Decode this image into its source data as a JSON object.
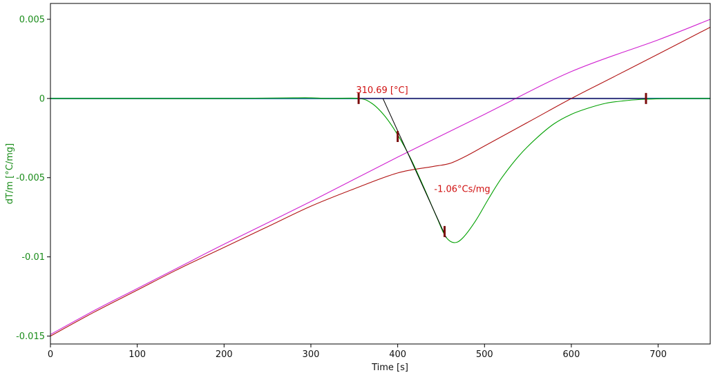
{
  "chart_data": {
    "type": "line",
    "title": "",
    "xlabel": "Time [s]",
    "ylabel": "dT/m  [°C/mg]",
    "xlim": [
      0,
      760
    ],
    "ylim": [
      -0.0155,
      0.006
    ],
    "x_ticks": [
      0,
      100,
      200,
      300,
      400,
      500,
      600,
      700
    ],
    "x_tick_labels": [
      "0",
      "100",
      "200",
      "300",
      "400",
      "500",
      "600",
      "700"
    ],
    "y_ticks": [
      0.005,
      0,
      -0.005,
      -0.01,
      -0.015
    ],
    "y_tick_labels": [
      "0.005",
      "0",
      "-0.005",
      "-0.01",
      "-0.015"
    ],
    "grid": false,
    "colors": {
      "dtm": "#00a000",
      "temperature": "#b01010",
      "program": "#d020d0",
      "baseline": "#1f6f9f",
      "horizontal_ref": "#400060",
      "tangent": "#000000",
      "marker": "#7a0a0a",
      "annotation": "#d01010",
      "y_axis_text": "#1a8c1a"
    },
    "series": [
      {
        "key": "dtm",
        "x": [
          0,
          100,
          200,
          280,
          300,
          320,
          355,
          370,
          385,
          400,
          415,
          430,
          445,
          455,
          465,
          475,
          490,
          505,
          520,
          540,
          560,
          580,
          600,
          620,
          640,
          660,
          680,
          700,
          720,
          760
        ],
        "y": [
          0,
          0,
          0,
          4e-05,
          4e-05,
          0,
          0,
          -0.0003,
          -0.0011,
          -0.0023,
          -0.0038,
          -0.0056,
          -0.0075,
          -0.0087,
          -0.0091,
          -0.0088,
          -0.0077,
          -0.0063,
          -0.005,
          -0.0036,
          -0.0025,
          -0.0016,
          -0.001,
          -0.0006,
          -0.0003,
          -0.00015,
          -6e-05,
          -2e-05,
          0,
          0
        ]
      },
      {
        "key": "temperature",
        "x": [
          0,
          50,
          100,
          150,
          200,
          250,
          300,
          350,
          400,
          440,
          460,
          480,
          500,
          530,
          560,
          600,
          650,
          700,
          760
        ],
        "y": [
          -0.015,
          -0.0135,
          -0.0121,
          -0.0107,
          -0.0094,
          -0.0081,
          -0.0068,
          -0.0057,
          -0.0047,
          -0.0043,
          -0.0041,
          -0.0036,
          -0.003,
          -0.0021,
          -0.0012,
          0.0,
          0.0014,
          0.0028,
          0.0045
        ]
      },
      {
        "key": "program",
        "x": [
          0,
          50,
          100,
          150,
          200,
          300,
          400,
          500,
          600,
          700,
          760
        ],
        "y": [
          -0.0149,
          -0.0134,
          -0.012,
          -0.0106,
          -0.0092,
          -0.0065,
          -0.0037,
          -0.001,
          0.0017,
          0.0037,
          0.005
        ]
      },
      {
        "key": "baseline",
        "x": [
          0,
          760
        ],
        "y": [
          0,
          0
        ]
      }
    ],
    "reference_line": {
      "x": [
        355,
        686
      ],
      "y": [
        0,
        0
      ]
    },
    "tangent_line": {
      "x": [
        383,
        456
      ],
      "y": [
        0,
        -0.0088
      ]
    },
    "markers": [
      {
        "x": 355,
        "y": 0
      },
      {
        "x": 400,
        "y": -0.0024
      },
      {
        "x": 454,
        "y": -0.0084
      },
      {
        "x": 686,
        "y": 0
      }
    ],
    "annotations": [
      {
        "text": "310.69 [°C]",
        "x": 352,
        "y": 0.00035
      },
      {
        "text": "-1.06°Cs/mg",
        "x": 442,
        "y": -0.0059
      }
    ]
  }
}
